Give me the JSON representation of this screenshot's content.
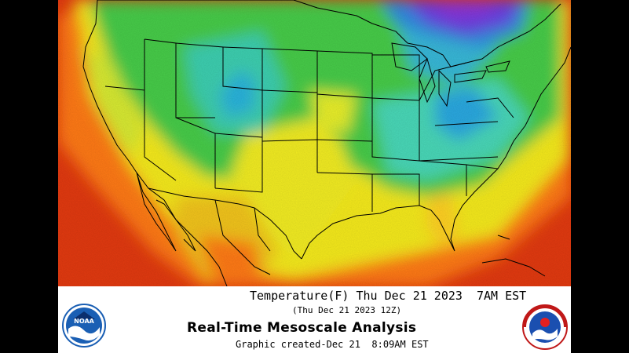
{
  "footer": {
    "title": "Temperature(F) Thu Dec 21 2023  7AM EST",
    "subtitle": "(Thu Dec 21 2023 12Z)",
    "main": "Real-Time Mesoscale Analysis",
    "created": "Graphic created-Dec 21  8:09AM EST"
  },
  "logos": {
    "noaa": {
      "text": "NOAA",
      "icon": "noaa-logo-icon"
    },
    "nws": {
      "text": "NATIONAL WEATHER SERVICE",
      "icon": "nws-logo-icon"
    }
  },
  "colors": {
    "ocean_warm": "#e8390e",
    "ocean_hot": "#d42a0a",
    "orange": "#ff8c1a",
    "yellow": "#f4f01e",
    "green": "#3fd24a",
    "light_green": "#8ee04a",
    "cyan": "#3fd6b4",
    "blue": "#2aa8e8",
    "purple": "#6b3fe0",
    "border": "#000000"
  }
}
